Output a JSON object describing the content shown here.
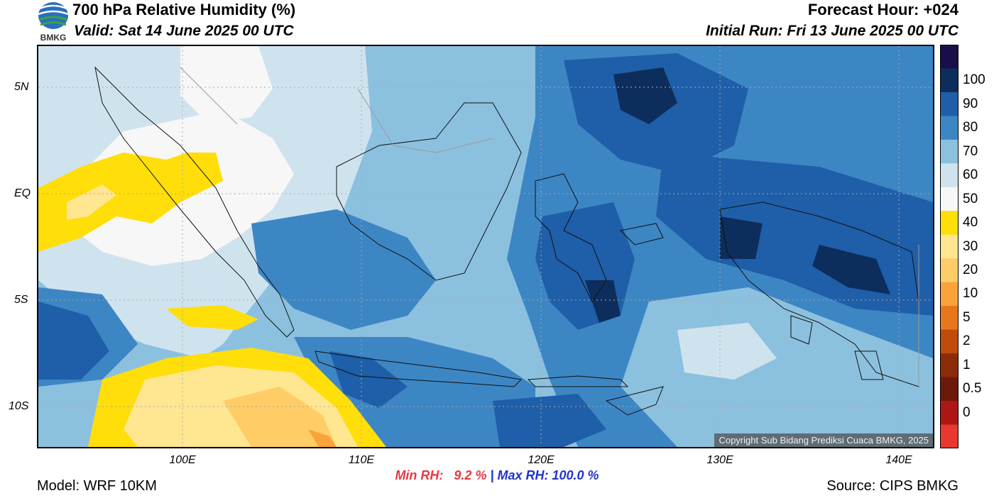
{
  "header": {
    "title": "700 hPa Relative Humidity (%)",
    "valid": "Valid: Sat 14 June 2025 00 UTC",
    "forecast_hour": "Forecast Hour: +024",
    "initial_run": "Initial Run: Fri 13 June 2025 00 UTC"
  },
  "logo": {
    "icon": "bmkg-logo-icon",
    "text": "BMKG"
  },
  "map": {
    "lat_labels": [
      "5N",
      "EQ",
      "5S",
      "10S"
    ],
    "lon_labels": [
      "100E",
      "110E",
      "120E",
      "130E",
      "140E"
    ],
    "lon_range": [
      92,
      142
    ],
    "lat_range": [
      -12,
      7
    ]
  },
  "colorbar": {
    "labels": [
      "100",
      "90",
      "80",
      "70",
      "60",
      "50",
      "40",
      "30",
      "20",
      "10",
      "5",
      "2",
      "1",
      "0.5",
      "0"
    ],
    "colors": [
      "#1a0e4a",
      "#0d2d5c",
      "#1f5ea8",
      "#3d86c4",
      "#8cc0df",
      "#cfe3ef",
      "#f7f7f7",
      "#ffde0a",
      "#ffe690",
      "#ffcc66",
      "#f9a33a",
      "#e8761b",
      "#c04b0a",
      "#8b2b0a",
      "#6b1a0a",
      "#b01515",
      "#e8382f"
    ]
  },
  "stats": {
    "min_rh": "Min RH:   9.2 %",
    "sep": " | ",
    "max_rh": "Max RH: 100.0 %"
  },
  "footer": {
    "model": "Model: WRF 10KM",
    "source": "Source: CIPS BMKG",
    "copyright": "Copyright Sub Bidang Prediksi Cuaca BMKG, 2025"
  }
}
